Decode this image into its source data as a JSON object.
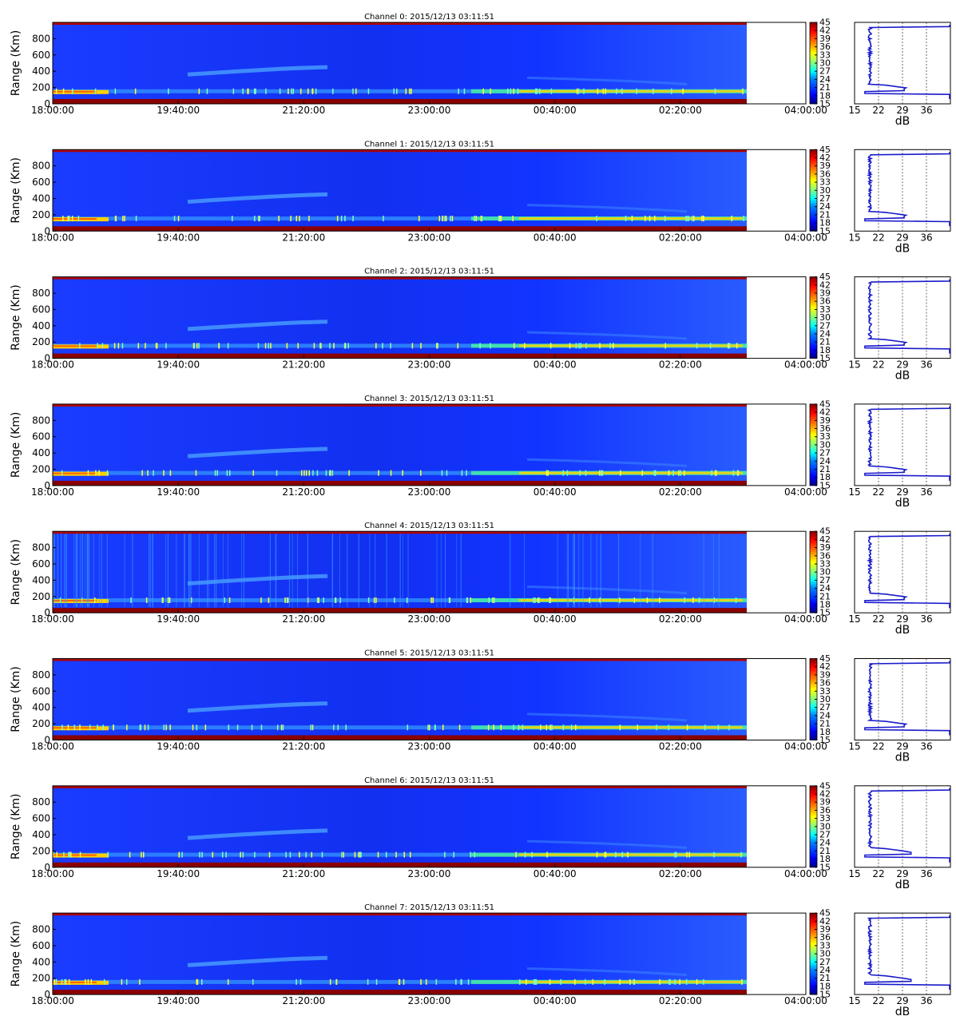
{
  "figure": {
    "colors": {
      "jet": [
        "#00007f",
        "#0000ff",
        "#0080ff",
        "#00ffff",
        "#80ff80",
        "#ffff00",
        "#ff8000",
        "#ff0000",
        "#7f0000"
      ],
      "background_blue": "#1030ff",
      "profile_line": "#1a1acc"
    },
    "rti_xticks": [
      "18:00:00",
      "19:40:00",
      "21:20:00",
      "23:00:00",
      "00:40:00",
      "02:20:00",
      "04:00:00"
    ],
    "rti_yticks": [
      "0",
      "200",
      "400",
      "600",
      "800"
    ],
    "ylabel": "Range (Km)",
    "colorbar_ticks": [
      "45",
      "42",
      "39",
      "36",
      "33",
      "30",
      "27",
      "24",
      "21",
      "18",
      "15"
    ],
    "profile_xticks": [
      "15",
      "22",
      "29",
      "36"
    ],
    "profile_xlabel": "dB"
  },
  "chart_data": [
    {
      "type": "heatmap",
      "title": "Channel 0: 2015/12/13 03:11:51",
      "ylabel": "Range (Km)",
      "xlim": [
        "18:00:00",
        "04:00:00"
      ],
      "ylim": [
        0,
        1000
      ],
      "clim": [
        15,
        45
      ]
    },
    {
      "type": "heatmap",
      "title": "Channel 1: 2015/12/13 03:11:51",
      "ylabel": "Range (Km)",
      "xlim": [
        "18:00:00",
        "04:00:00"
      ],
      "ylim": [
        0,
        1000
      ],
      "clim": [
        15,
        45
      ]
    },
    {
      "type": "heatmap",
      "title": "Channel 2: 2015/12/13 03:11:51",
      "ylabel": "Range (Km)",
      "xlim": [
        "18:00:00",
        "04:00:00"
      ],
      "ylim": [
        0,
        1000
      ],
      "clim": [
        15,
        45
      ]
    },
    {
      "type": "heatmap",
      "title": "Channel 3: 2015/12/13 03:11:51",
      "ylabel": "Range (Km)",
      "xlim": [
        "18:00:00",
        "04:00:00"
      ],
      "ylim": [
        0,
        1000
      ],
      "clim": [
        15,
        45
      ]
    },
    {
      "type": "heatmap",
      "title": "Channel 4: 2015/12/13 03:11:51",
      "ylabel": "Range (Km)",
      "xlim": [
        "18:00:00",
        "04:00:00"
      ],
      "ylim": [
        0,
        1000
      ],
      "clim": [
        15,
        45
      ]
    },
    {
      "type": "heatmap",
      "title": "Channel 5: 2015/12/13 03:11:51",
      "ylabel": "Range (Km)",
      "xlim": [
        "18:00:00",
        "04:00:00"
      ],
      "ylim": [
        0,
        1000
      ],
      "clim": [
        15,
        45
      ]
    },
    {
      "type": "heatmap",
      "title": "Channel 6: 2015/12/13 03:11:51",
      "ylabel": "Range (Km)",
      "xlim": [
        "18:00:00",
        "04:00:00"
      ],
      "ylim": [
        0,
        1000
      ],
      "clim": [
        15,
        45
      ]
    },
    {
      "type": "heatmap",
      "title": "Channel 7: 2015/12/13 03:11:51",
      "ylabel": "Range (Km)",
      "xlim": [
        "18:00:00",
        "04:00:00"
      ],
      "ylim": [
        0,
        1000
      ],
      "clim": [
        15,
        45
      ]
    }
  ]
}
